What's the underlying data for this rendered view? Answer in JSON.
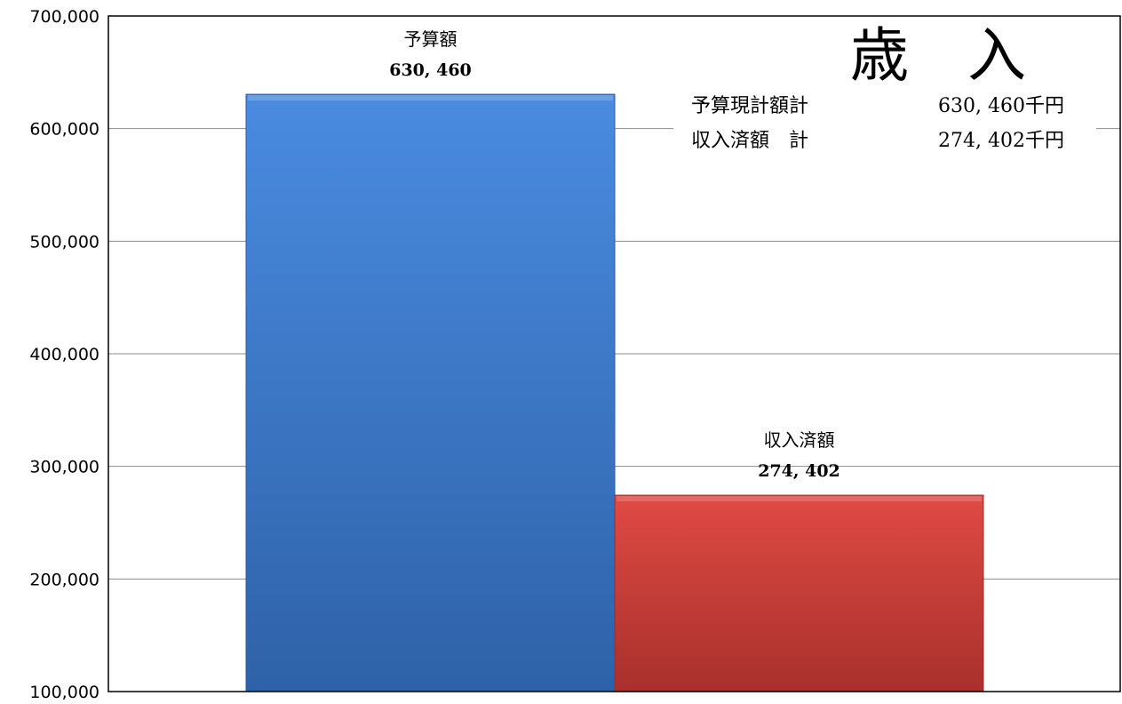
{
  "chart_data": {
    "type": "bar",
    "title": "歳　入",
    "categories": [
      "予算額",
      "収入済額"
    ],
    "values": [
      630460,
      274402
    ],
    "value_labels": [
      "630, 460",
      "274, 402"
    ],
    "ylim": [
      100000,
      700000
    ],
    "yticks": [
      100000,
      200000,
      300000,
      400000,
      500000,
      600000,
      700000
    ],
    "ytick_labels": [
      "100,000",
      "200,000",
      "300,000",
      "400,000",
      "500,000",
      "600,000",
      "700,000"
    ],
    "xlabel": "",
    "ylabel": "",
    "grid": true,
    "legend": "none",
    "colors": [
      "#3d7ad1",
      "#d64541"
    ],
    "summary": [
      {
        "label": "予算現計額計",
        "value": "630, 460千円"
      },
      {
        "label": "収入済額　計",
        "value": "274, 402千円"
      }
    ]
  }
}
